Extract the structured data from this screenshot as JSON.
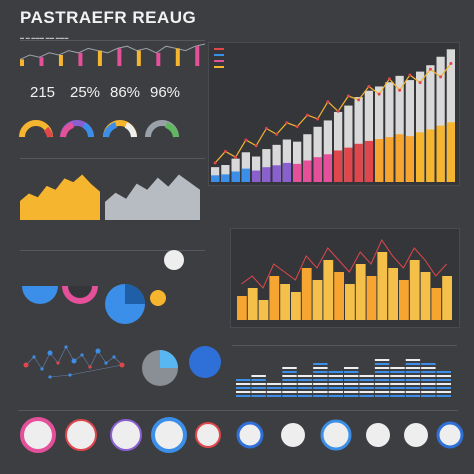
{
  "header": {
    "title": "PASTRAEFR REAUG"
  },
  "stats": [
    "215",
    "25%",
    "86%",
    "96%"
  ],
  "colors": {
    "background": "#3d3e41",
    "yellow": "#f5b52e",
    "orange": "#f7a531",
    "red": "#e0474c",
    "pink": "#e4509a",
    "purple": "#8a5fd0",
    "blue": "#3b8fe8",
    "light_blue": "#58b7f0",
    "gray": "#9aa1a8",
    "white": "#eeeeee"
  },
  "icons": [
    "gauge-icon",
    "donut-icon",
    "pie-icon",
    "ring-icon"
  ],
  "chart_data": [
    {
      "type": "line",
      "panel": "top-left-sparkline",
      "values": [
        3,
        5,
        4,
        6,
        5,
        7,
        6,
        8,
        7,
        6,
        8,
        9,
        7,
        8,
        6,
        9,
        8,
        7,
        9,
        10
      ]
    },
    {
      "type": "bar",
      "panel": "main-stacked-bar",
      "values": [
        14,
        16,
        22,
        28,
        24,
        31,
        35,
        40,
        38,
        45,
        52,
        58,
        66,
        72,
        80,
        86,
        90,
        94,
        100,
        96,
        104,
        110,
        118,
        125
      ],
      "line_values": [
        20,
        32,
        26,
        44,
        38,
        56,
        50,
        62,
        58,
        70,
        66,
        84,
        74,
        90,
        86,
        100,
        92,
        108,
        96,
        112,
        104,
        118,
        110,
        124
      ]
    },
    {
      "type": "area",
      "panel": "left-area-yellow",
      "values": [
        10,
        14,
        12,
        18,
        16,
        22,
        20,
        24,
        19,
        15
      ]
    },
    {
      "type": "area",
      "panel": "left-area-gray",
      "values": [
        12,
        18,
        14,
        24,
        20,
        28,
        22,
        30,
        25,
        20
      ]
    },
    {
      "type": "bar",
      "panel": "right-yellow-bars",
      "values": [
        12,
        16,
        10,
        22,
        18,
        14,
        26,
        20,
        30,
        24,
        18,
        28,
        22,
        34,
        26,
        20,
        30,
        24,
        16,
        22
      ]
    },
    {
      "type": "area",
      "panel": "right-striped-area",
      "values": [
        14,
        18,
        12,
        22,
        16,
        26,
        20,
        24,
        18,
        28,
        22,
        30,
        26,
        20
      ]
    }
  ]
}
